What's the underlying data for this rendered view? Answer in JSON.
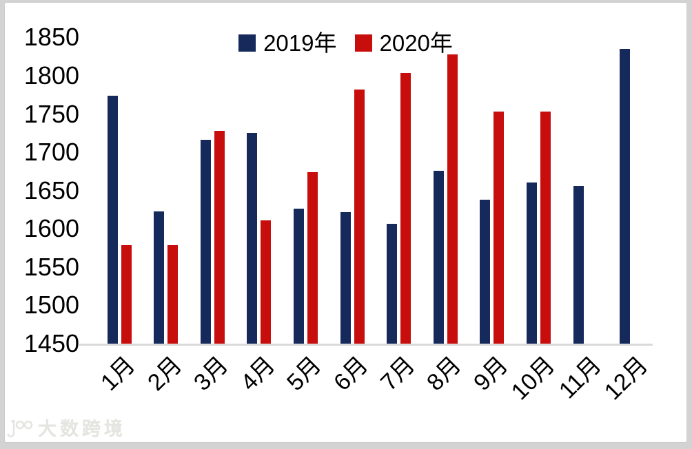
{
  "chart_data": {
    "type": "bar",
    "title": "",
    "xlabel": "",
    "ylabel": "",
    "categories": [
      "1月",
      "2月",
      "3月",
      "4月",
      "5月",
      "6月",
      "7月",
      "8月",
      "9月",
      "10月",
      "11月",
      "12月"
    ],
    "series": [
      {
        "name": "2019年",
        "key": "2019",
        "color": "#16295b",
        "values": [
          1774,
          1623,
          1716,
          1725,
          1626,
          1622,
          1607,
          1676,
          1638,
          1661,
          1656,
          1835
        ]
      },
      {
        "name": "2020年",
        "key": "2020",
        "color": "#c80d0d",
        "values": [
          1579,
          1579,
          1728,
          1611,
          1674,
          1782,
          1804,
          1828,
          1753,
          1753,
          null,
          null
        ]
      }
    ],
    "ylim": [
      1450,
      1850
    ],
    "ytick_step": 50,
    "yticks": [
      1850,
      1800,
      1750,
      1700,
      1650,
      1600,
      1550,
      1500,
      1450
    ],
    "legend_position": "top-center",
    "grid": false,
    "x_tick_rotation_deg": -45
  },
  "colors": {
    "frame_bg": "#d3d3d3",
    "panel_bg": "#ffffff",
    "axis_line": "#d9d9d9",
    "text": "#000000"
  },
  "watermark": {
    "logo": "100-glasses-logo",
    "text": "大数跨境"
  }
}
